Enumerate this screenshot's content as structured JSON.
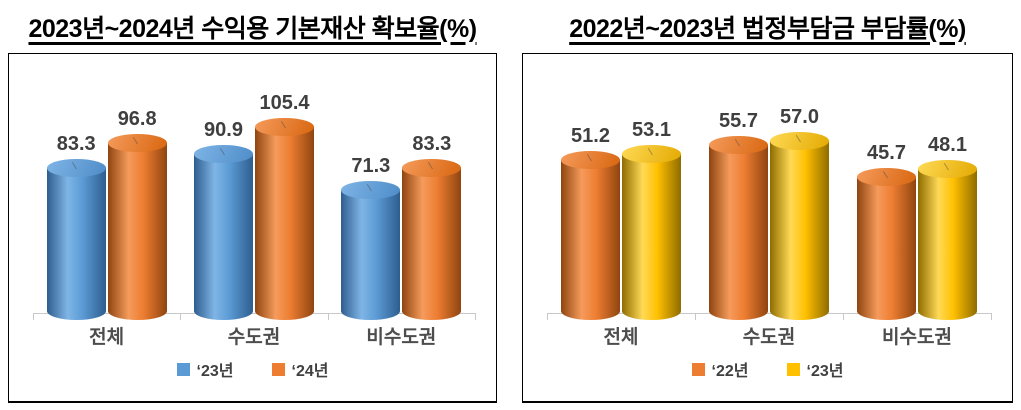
{
  "page": {
    "background": "#ffffff",
    "value_label_color": "#3F3F3F",
    "axis_color": "#C9C9C9"
  },
  "chart_data": [
    {
      "type": "bar",
      "bar_style": "3d-cylinder",
      "title": "2023년~2024년 수익용 기본재산 확보율(%)",
      "categories": [
        "전체",
        "수도권",
        "비수도권"
      ],
      "series": [
        {
          "name": "‘23년",
          "values": [
            83.3,
            90.9,
            71.3
          ],
          "labels": [
            "83.3",
            "90.9",
            "71.3"
          ],
          "color": "#5B9BD5",
          "color_dark": "#2E5E8F",
          "color_light": "#7FB5E6",
          "color_top": "#4E8CC8"
        },
        {
          "name": "‘24년",
          "values": [
            96.8,
            105.4,
            83.3
          ],
          "labels": [
            "96.8",
            "105.4",
            "83.3"
          ],
          "color": "#ED7D31",
          "color_dark": "#8F4510",
          "color_light": "#F59B5C",
          "color_top": "#D8660F"
        }
      ],
      "ylim": [
        0,
        120
      ],
      "unit": "%",
      "grid": false,
      "legend_position": "bottom"
    },
    {
      "type": "bar",
      "bar_style": "3d-cylinder",
      "title": "2022년~2023년 법정부담금 부담률(%)",
      "categories": [
        "전체",
        "수도권",
        "비수도권"
      ],
      "series": [
        {
          "name": "‘22년",
          "values": [
            51.2,
            55.7,
            45.7
          ],
          "labels": [
            "51.2",
            "55.7",
            "45.7"
          ],
          "color": "#ED7D31",
          "color_dark": "#8F4510",
          "color_light": "#F59B5C",
          "color_top": "#D8660F"
        },
        {
          "name": "‘23년",
          "values": [
            53.1,
            57.0,
            48.1
          ],
          "labels": [
            "53.1",
            "57.0",
            "48.1"
          ],
          "color": "#FFC000",
          "color_dark": "#8F6C00",
          "color_light": "#FFDA57",
          "color_top": "#E3A900"
        }
      ],
      "ylim": [
        0,
        70
      ],
      "unit": "%",
      "grid": false,
      "legend_position": "bottom"
    }
  ]
}
